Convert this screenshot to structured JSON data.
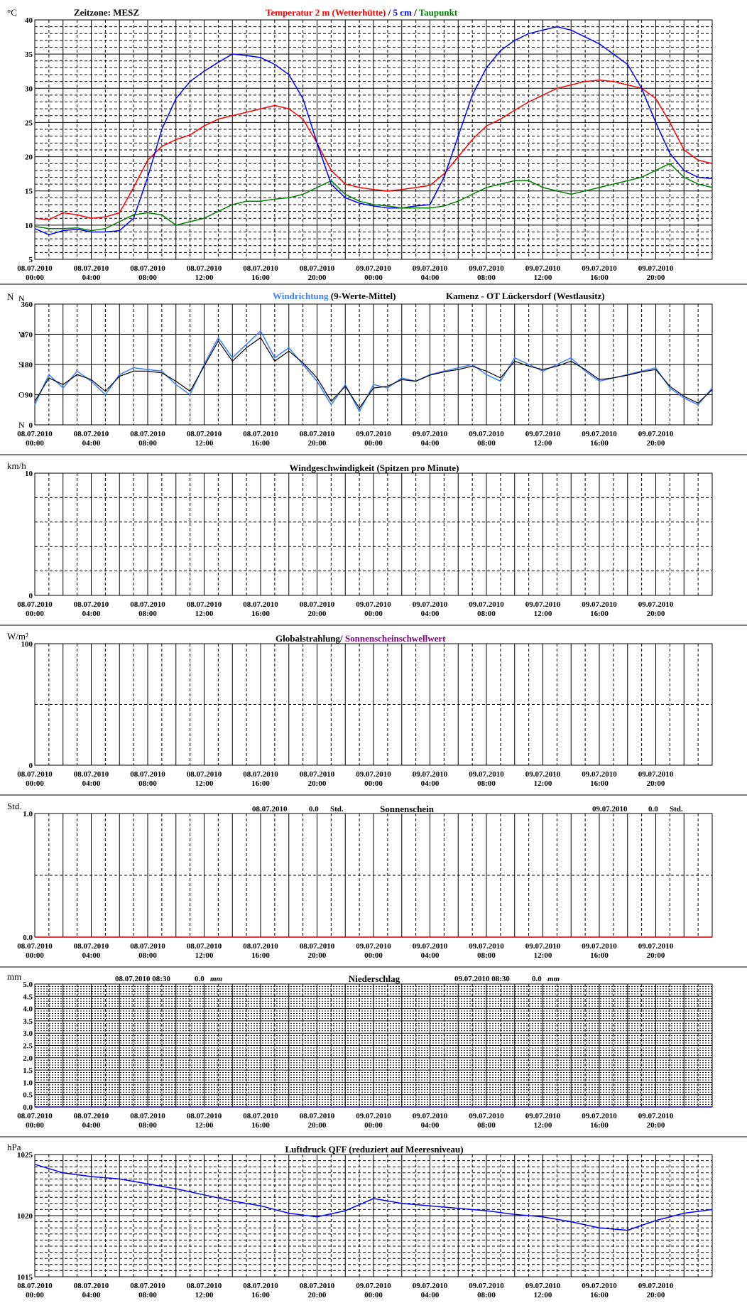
{
  "colors": {
    "temp2m": "#ff0000",
    "temp5cm": "#0000ff",
    "dewpoint": "#008000",
    "winddir": "#3b7fff",
    "winddir_avg": "#000000",
    "sunshine_threshold": "#800080",
    "sunshine_line": "#cc0000",
    "rain_line": "#0000aa",
    "pressure": "#0000ff"
  },
  "x_ticks": [
    {
      "date": "08.07.2010",
      "time": "00:00"
    },
    {
      "date": "08.07.2010",
      "time": "04:00"
    },
    {
      "date": "08.07.2010",
      "time": "08:00"
    },
    {
      "date": "08.07.2010",
      "time": "12:00"
    },
    {
      "date": "08.07.2010",
      "time": "16:00"
    },
    {
      "date": "08.07.2010",
      "time": "20:00"
    },
    {
      "date": "09.07.2010",
      "time": "00:00"
    },
    {
      "date": "09.07.2010",
      "time": "04:00"
    },
    {
      "date": "09.07.2010",
      "time": "08:00"
    },
    {
      "date": "09.07.2010",
      "time": "12:00"
    },
    {
      "date": "09.07.2010",
      "time": "16:00"
    },
    {
      "date": "09.07.2010",
      "time": "20:00"
    }
  ],
  "chart_data": [
    {
      "id": "temperature",
      "type": "line",
      "unit": "°C",
      "timezone_label": "Zeitzone: MESZ",
      "title_parts": [
        "Temperatur 2 m (Wetterhütte)",
        " / ",
        "5 cm",
        " / ",
        "Taupunkt"
      ],
      "ylim": [
        5,
        40
      ],
      "yticks": [
        5,
        10,
        15,
        20,
        25,
        30,
        35,
        40
      ],
      "x_hours": [
        0,
        1,
        2,
        3,
        4,
        5,
        6,
        7,
        8,
        9,
        10,
        11,
        12,
        13,
        14,
        15,
        16,
        17,
        18,
        19,
        20,
        21,
        22,
        23,
        24,
        25,
        26,
        27,
        28,
        29,
        30,
        31,
        32,
        33,
        34,
        35,
        36,
        37,
        38,
        39,
        40,
        41,
        42,
        43,
        44,
        45,
        46,
        47,
        48
      ],
      "series": [
        {
          "name": "Temperatur 2 m (Wetterhütte)",
          "color_key": "temp2m",
          "values": [
            11.0,
            10.8,
            11.8,
            11.5,
            11.0,
            11.2,
            11.8,
            15.5,
            19.5,
            21.5,
            22.5,
            23.2,
            24.5,
            25.5,
            26.0,
            26.5,
            27.0,
            27.5,
            27.0,
            25.5,
            22.0,
            18.0,
            16.0,
            15.5,
            15.2,
            15.0,
            15.2,
            15.5,
            15.8,
            17.5,
            20.0,
            22.5,
            24.5,
            25.5,
            26.8,
            28.0,
            29.0,
            30.0,
            30.5,
            31.0,
            31.2,
            31.0,
            30.5,
            30.0,
            28.5,
            25.0,
            21.0,
            19.5,
            19.0
          ]
        },
        {
          "name": "5 cm",
          "color_key": "temp5cm",
          "values": [
            9.5,
            8.6,
            9.2,
            9.4,
            9.0,
            9.0,
            9.2,
            11.0,
            17.0,
            24.0,
            28.5,
            31.0,
            32.5,
            33.8,
            35.0,
            34.8,
            34.5,
            33.5,
            32.0,
            28.5,
            22.0,
            16.0,
            14.0,
            13.2,
            12.8,
            12.5,
            12.5,
            12.8,
            13.0,
            17.0,
            23.0,
            29.0,
            33.0,
            35.5,
            37.0,
            38.0,
            38.5,
            39.0,
            38.5,
            37.5,
            36.5,
            35.0,
            33.5,
            30.0,
            25.0,
            20.5,
            18.0,
            17.0,
            16.8
          ]
        },
        {
          "name": "Taupunkt",
          "color_key": "dewpoint",
          "values": [
            9.8,
            9.5,
            9.5,
            9.6,
            9.2,
            9.5,
            10.5,
            11.5,
            11.8,
            11.5,
            10.0,
            10.5,
            11.0,
            12.0,
            13.0,
            13.5,
            13.5,
            13.8,
            14.0,
            14.5,
            15.5,
            16.5,
            14.5,
            13.5,
            13.0,
            12.8,
            12.5,
            12.5,
            12.5,
            12.8,
            13.5,
            14.5,
            15.5,
            16.0,
            16.5,
            16.5,
            15.5,
            15.0,
            14.5,
            15.0,
            15.5,
            16.0,
            16.5,
            17.0,
            18.0,
            19.0,
            17.0,
            16.0,
            15.5
          ]
        }
      ]
    },
    {
      "id": "wind_direction",
      "type": "line",
      "unit": "N",
      "title_parts": [
        "Windrichtung",
        " (9-Werte-Mittel)"
      ],
      "station": "Kamenz - OT Lückersdorf (Westlausitz)",
      "ylim": [
        0,
        360
      ],
      "yticks": [
        0,
        90,
        180,
        270,
        360
      ],
      "compass_labels": [
        {
          "label": "N",
          "value": 0
        },
        {
          "label": "O",
          "value": 90
        },
        {
          "label": "S",
          "value": 180
        },
        {
          "label": "W",
          "value": 270
        },
        {
          "label": "N",
          "value": 360
        }
      ],
      "x_hours": [
        0,
        1,
        2,
        3,
        4,
        5,
        6,
        7,
        8,
        9,
        10,
        11,
        12,
        13,
        14,
        15,
        16,
        17,
        18,
        19,
        20,
        21,
        22,
        23,
        24,
        25,
        26,
        27,
        28,
        29,
        30,
        31,
        32,
        33,
        34,
        35,
        36,
        37,
        38,
        39,
        40,
        41,
        42,
        43,
        44,
        45,
        46,
        47,
        48
      ],
      "series": [
        {
          "name": "Windrichtung",
          "color_key": "winddir",
          "values": [
            60,
            150,
            110,
            160,
            130,
            90,
            150,
            170,
            165,
            160,
            120,
            90,
            180,
            260,
            200,
            240,
            280,
            200,
            230,
            180,
            130,
            60,
            120,
            40,
            120,
            110,
            140,
            130,
            150,
            160,
            170,
            180,
            150,
            130,
            200,
            180,
            160,
            180,
            200,
            160,
            130,
            140,
            150,
            160,
            170,
            110,
            80,
            60,
            110
          ]
        },
        {
          "name": "9-Werte-Mittel",
          "color_key": "winddir_avg",
          "values": [
            70,
            140,
            120,
            150,
            135,
            100,
            145,
            160,
            160,
            155,
            130,
            100,
            175,
            250,
            190,
            230,
            260,
            190,
            220,
            185,
            140,
            70,
            115,
            50,
            110,
            115,
            135,
            130,
            148,
            158,
            165,
            175,
            160,
            140,
            190,
            175,
            165,
            175,
            190,
            165,
            135,
            140,
            148,
            158,
            165,
            115,
            85,
            65,
            105
          ]
        }
      ]
    },
    {
      "id": "wind_speed",
      "type": "line",
      "unit": "km/h",
      "title": "Windgeschwindigkeit (Spitzen pro Minute)",
      "ylim": [
        0,
        10
      ],
      "yticks": [
        0,
        10
      ],
      "series": []
    },
    {
      "id": "global_radiation",
      "type": "line",
      "unit": "W/m²",
      "title_parts": [
        "Globalstrahlung/ ",
        "Sonnenscheinschwellwert"
      ],
      "ylim": [
        0,
        100
      ],
      "yticks": [
        0,
        100
      ],
      "series": []
    },
    {
      "id": "sunshine",
      "type": "line",
      "unit": "Std.",
      "title": "Sonnenschein",
      "summary": [
        {
          "date": "08.07.2010",
          "value": "0.0",
          "unit": "Std."
        },
        {
          "date": "09.07.2010",
          "value": "0.0",
          "unit": "Std."
        }
      ],
      "ylim": [
        0.0,
        1.0
      ],
      "yticks": [
        "0.0",
        "1.0"
      ],
      "series": [
        {
          "name": "Sonnenschein",
          "color_key": "sunshine_line",
          "values": [
            0,
            0
          ]
        }
      ]
    },
    {
      "id": "precipitation",
      "type": "line",
      "unit": "mm",
      "title": "Niederschlag",
      "summary": [
        {
          "date": "08.07.2010 08:30",
          "value": "0.0",
          "unit": "mm"
        },
        {
          "date": "09.07.2010 08:30",
          "value": "0.0",
          "unit": "mm"
        }
      ],
      "ylim": [
        0.0,
        5.0
      ],
      "yticks": [
        "0.0",
        "0.5",
        "1.0",
        "1.5",
        "2.0",
        "2.5",
        "3.0",
        "3.5",
        "4.0",
        "4.5",
        "5.0"
      ],
      "series": [
        {
          "name": "Niederschlag",
          "color_key": "rain_line",
          "values": [
            0,
            0
          ]
        }
      ]
    },
    {
      "id": "pressure",
      "type": "line",
      "unit": "hPa",
      "title": "Luftdruck QFF (reduziert auf Meeresniveau)",
      "ylim": [
        1015,
        1025
      ],
      "yticks": [
        1015,
        1020,
        1025
      ],
      "x_hours": [
        0,
        2,
        4,
        6,
        8,
        10,
        12,
        14,
        16,
        18,
        20,
        22,
        24,
        26,
        28,
        30,
        32,
        34,
        36,
        38,
        40,
        42,
        44,
        46,
        48
      ],
      "series": [
        {
          "name": "Luftdruck QFF",
          "color_key": "pressure",
          "values": [
            1024.2,
            1023.5,
            1023.2,
            1023.0,
            1022.6,
            1022.2,
            1021.7,
            1021.2,
            1020.8,
            1020.2,
            1019.9,
            1020.4,
            1021.4,
            1021.0,
            1020.8,
            1020.6,
            1020.4,
            1020.1,
            1019.9,
            1019.5,
            1019.0,
            1018.8,
            1019.6,
            1020.2,
            1020.5
          ]
        }
      ]
    }
  ]
}
